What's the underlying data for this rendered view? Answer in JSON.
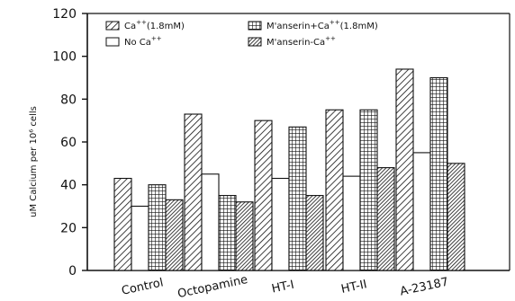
{
  "chart_data": {
    "type": "bar",
    "categories": [
      "Control",
      "Octopamine",
      "HT-I",
      "HT-II",
      "A-23187"
    ],
    "series": [
      {
        "name": "Ca++(1.8mM)",
        "values": [
          43,
          73,
          70,
          75,
          94
        ],
        "pattern": "diagonal"
      },
      {
        "name": "No Ca++",
        "values": [
          30,
          45,
          43,
          44,
          55
        ],
        "pattern": "white"
      },
      {
        "name": "M'anserin+Ca++(1.8mM)",
        "values": [
          40,
          35,
          67,
          75,
          90
        ],
        "pattern": "grid"
      },
      {
        "name": "M'anserin-Ca++",
        "values": [
          33,
          32,
          35,
          48,
          50
        ],
        "pattern": "dense-diagonal"
      }
    ],
    "yticks": [
      0,
      20,
      40,
      60,
      80,
      100,
      120
    ],
    "ylim": [
      0,
      120
    ],
    "ylabel": "uM Calcium per 10⁶ cells",
    "legend": {
      "placement": "top",
      "items": [
        {
          "main": "Ca",
          "sup": "++",
          "suffix": "(1.8mM)"
        },
        {
          "main": "No Ca",
          "sup": "++",
          "suffix": ""
        },
        {
          "main": "M'anserin+Ca",
          "sup": "++",
          "suffix": "(1.8mM)"
        },
        {
          "main": "M'anserin-Ca",
          "sup": "++",
          "suffix": ""
        }
      ]
    },
    "grid": false,
    "colors": {
      "ink": "#111111",
      "fill": "#ffffff"
    }
  }
}
